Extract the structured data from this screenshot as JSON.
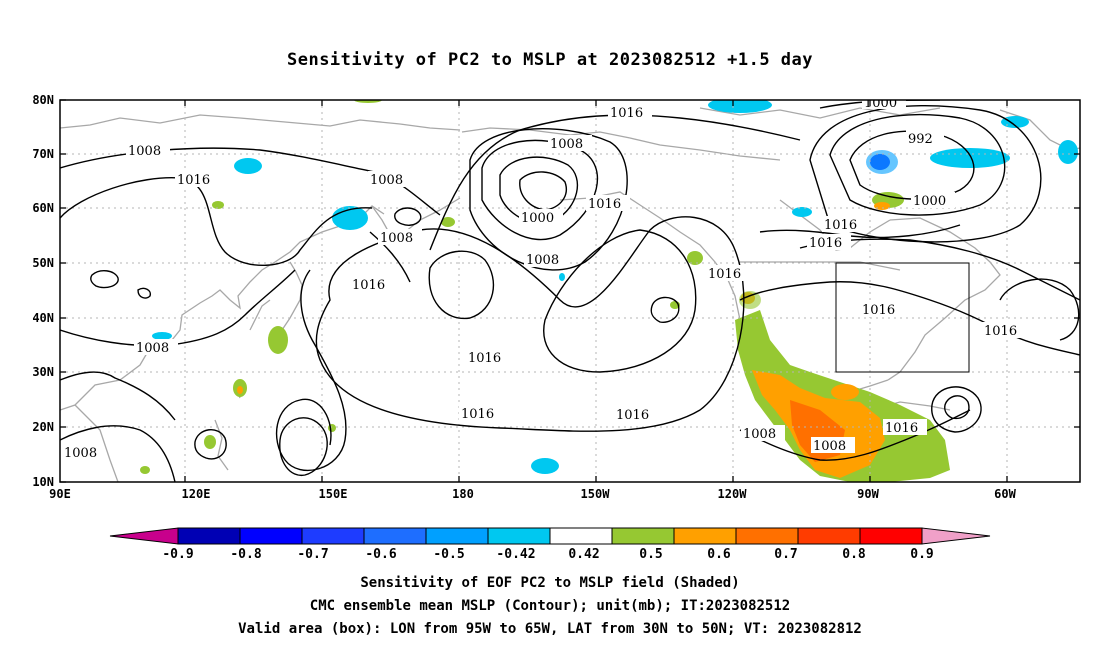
{
  "title": "Sensitivity of PC2 to MSLP at 2023082512 +1.5 day",
  "captions": [
    "Sensitivity of EOF PC2 to MSLP field (Shaded)",
    "CMC ensemble mean MSLP (Contour); unit(mb); IT:2023082512",
    "Valid area (box): LON from 95W to 65W, LAT from 30N to 50N; VT: 2023082812"
  ],
  "map": {
    "lon_ticks": [
      "90E",
      "120E",
      "150E",
      "180",
      "150W",
      "120W",
      "90W",
      "60W"
    ],
    "lat_ticks": [
      "80N",
      "70N",
      "60N",
      "50N",
      "40N",
      "30N",
      "20N",
      "10N"
    ],
    "valid_box": {
      "lon_from": "95W",
      "lon_to": "65W",
      "lat_from": "30N",
      "lat_to": "50N"
    },
    "contour_labels": [
      "1016",
      "1000",
      "992",
      "1008",
      "1016",
      "1008",
      "1016",
      "1008",
      "1008",
      "1000",
      "1016",
      "1008",
      "1008",
      "1016",
      "1016",
      "1016",
      "1016",
      "1016",
      "1016",
      "1008",
      "1008",
      "1016",
      "1016",
      "1016",
      "1008",
      "1000"
    ]
  },
  "colorbar": {
    "labels": [
      "-0.9",
      "-0.8",
      "-0.7",
      "-0.6",
      "-0.5",
      "-0.42",
      "0.42",
      "0.5",
      "0.6",
      "0.7",
      "0.8",
      "0.9"
    ],
    "colors": [
      "#0000b4",
      "#0000ff",
      "#1e3cff",
      "#1e6eff",
      "#00a0ff",
      "#00c8f0",
      "#ffffff",
      "#96c832",
      "#ffa000",
      "#ff7000",
      "#ff3c00",
      "#ff0000"
    ],
    "low_end_color": "#c8008c",
    "high_end_color": "#f0a0c8"
  }
}
